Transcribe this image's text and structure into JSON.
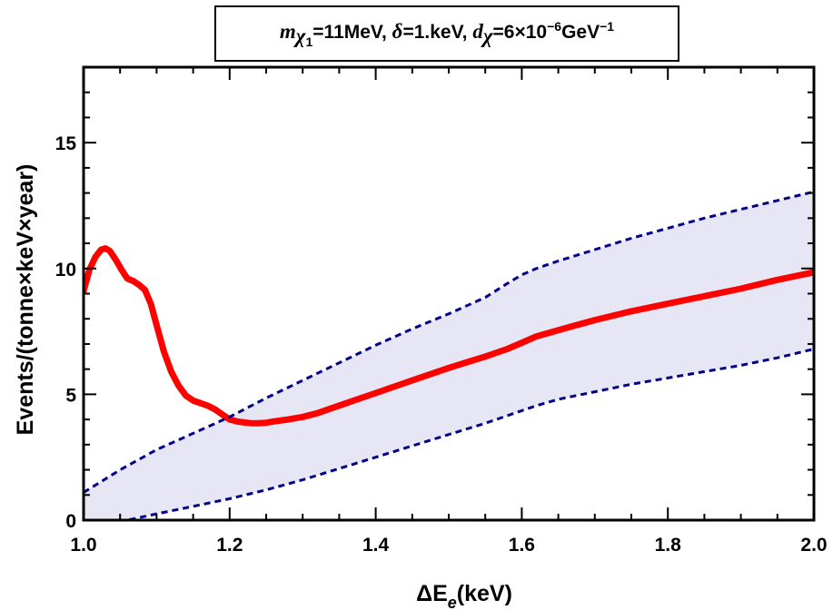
{
  "chart_data": {
    "type": "line",
    "title": {
      "m_sym": "m",
      "m_sub": "χ",
      "m_subsub": "1",
      "m_val": "=11MeV, ",
      "d_sym": "δ",
      "d_val": "=1.keV, ",
      "dx_sym": "d",
      "dx_sub": "χ",
      "dx_val": "=6×10",
      "dx_exp": "−6",
      "dx_unit": "GeV",
      "dx_unit_exp": "−1"
    },
    "xlabel": {
      "prefix": "ΔE",
      "sub": "e",
      "suffix": "(keV)"
    },
    "ylabel": "Events/(tonne×keV×year)",
    "xlim": [
      1.0,
      2.0
    ],
    "ylim": [
      0,
      18
    ],
    "xticks": [
      "1.0",
      "1.2",
      "1.4",
      "1.6",
      "1.8",
      "2.0"
    ],
    "xtick_values": [
      1.0,
      1.2,
      1.4,
      1.6,
      1.8,
      2.0
    ],
    "yticks": [
      "0",
      "5",
      "10",
      "15"
    ],
    "ytick_values": [
      0,
      5,
      10,
      15
    ],
    "series": [
      {
        "kind": "solid",
        "color": "#ff0000",
        "x": [
          1.0,
          1.008,
          1.016,
          1.024,
          1.03,
          1.036,
          1.044,
          1.052,
          1.06,
          1.068,
          1.076,
          1.084,
          1.092,
          1.1,
          1.11,
          1.12,
          1.13,
          1.14,
          1.15,
          1.16,
          1.17,
          1.18,
          1.19,
          1.2,
          1.21,
          1.22,
          1.23,
          1.24,
          1.25,
          1.26,
          1.28,
          1.3,
          1.32,
          1.34,
          1.36,
          1.38,
          1.4,
          1.45,
          1.5,
          1.55,
          1.58,
          1.6,
          1.62,
          1.65,
          1.7,
          1.75,
          1.8,
          1.85,
          1.9,
          1.95,
          2.0
        ],
        "y": [
          9.1,
          9.95,
          10.45,
          10.75,
          10.8,
          10.7,
          10.35,
          9.95,
          9.6,
          9.5,
          9.35,
          9.15,
          8.6,
          7.75,
          6.7,
          5.9,
          5.35,
          4.95,
          4.75,
          4.65,
          4.55,
          4.4,
          4.2,
          4.0,
          3.92,
          3.88,
          3.85,
          3.85,
          3.87,
          3.92,
          4.0,
          4.1,
          4.25,
          4.45,
          4.65,
          4.85,
          5.05,
          5.55,
          6.05,
          6.5,
          6.8,
          7.05,
          7.3,
          7.55,
          7.95,
          8.3,
          8.6,
          8.9,
          9.2,
          9.55,
          9.85
        ]
      },
      {
        "kind": "dashed",
        "color": "#00008b",
        "x": [
          1.0,
          1.05,
          1.1,
          1.15,
          1.2,
          1.25,
          1.3,
          1.35,
          1.4,
          1.45,
          1.5,
          1.55,
          1.58,
          1.6,
          1.62,
          1.65,
          1.7,
          1.75,
          1.8,
          1.85,
          1.9,
          1.95,
          2.0
        ],
        "y": [
          1.1,
          2.0,
          2.8,
          3.45,
          4.1,
          4.85,
          5.55,
          6.25,
          6.95,
          7.6,
          8.2,
          8.85,
          9.4,
          9.75,
          10.0,
          10.3,
          10.75,
          11.2,
          11.6,
          12.0,
          12.35,
          12.7,
          13.05
        ]
      },
      {
        "kind": "dashed",
        "color": "#00008b",
        "x": [
          1.05,
          1.06,
          1.1,
          1.15,
          1.2,
          1.25,
          1.3,
          1.35,
          1.4,
          1.45,
          1.5,
          1.55,
          1.6,
          1.62,
          1.65,
          1.7,
          1.75,
          1.8,
          1.85,
          1.9,
          1.95,
          2.0
        ],
        "y": [
          -0.2,
          0.0,
          0.25,
          0.55,
          0.85,
          1.2,
          1.6,
          2.05,
          2.5,
          2.95,
          3.4,
          3.85,
          4.35,
          4.55,
          4.8,
          5.1,
          5.4,
          5.65,
          5.9,
          6.15,
          6.45,
          6.8
        ]
      }
    ],
    "band": {
      "fill": "#e6e6f5",
      "upper": "series.1",
      "lower": "series.2"
    }
  }
}
